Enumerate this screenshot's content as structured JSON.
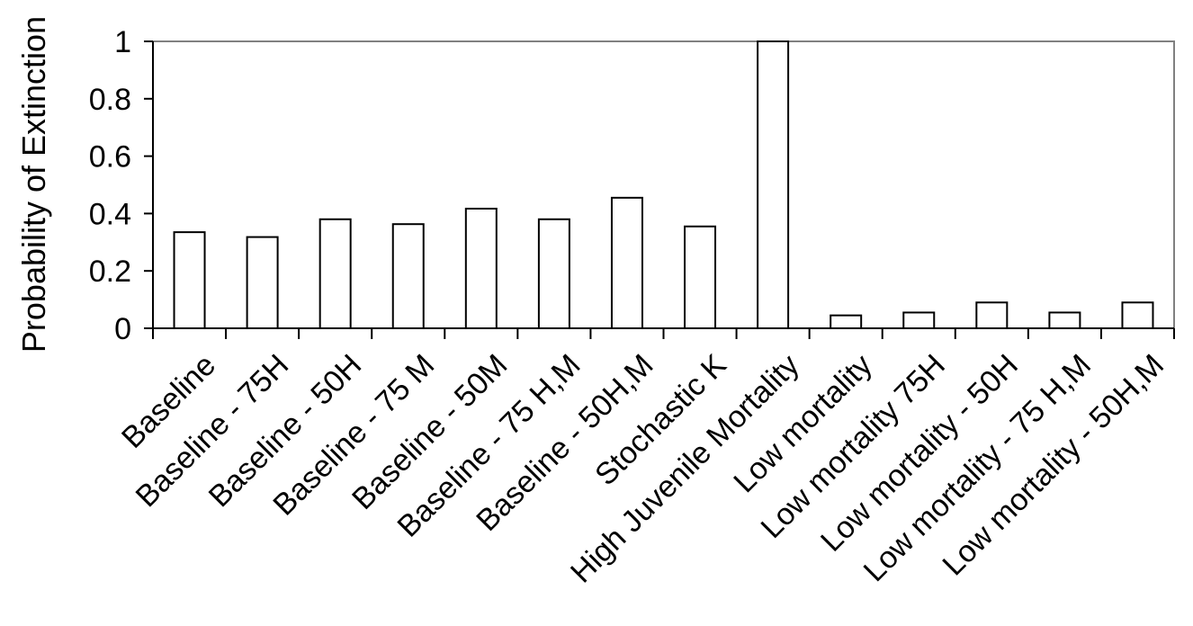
{
  "chart_data": {
    "type": "bar",
    "title": "",
    "xlabel": "",
    "ylabel": "Probability of Extinction",
    "ylim": [
      0,
      1
    ],
    "yticks": [
      0,
      0.2,
      0.4,
      0.6,
      0.8,
      1
    ],
    "ytick_labels": [
      "0",
      "0.2",
      "0.4",
      "0.6",
      "0.8",
      "1"
    ],
    "grid": false,
    "legend": "none",
    "categories": [
      "Baseline",
      "Baseline - 75H",
      "Baseline - 50H",
      "Baseline - 75 M",
      "Baseline - 50M",
      "Baseline - 75 H,M",
      "Baseline - 50H,M",
      "Stochastic K",
      "High Juvenile Mortality",
      "Low mortality",
      "Low mortality 75H",
      "Low mortality - 50H",
      "Low mortality - 75 H,M",
      "Low mortality - 50H,M"
    ],
    "values": [
      0.335,
      0.318,
      0.38,
      0.363,
      0.417,
      0.38,
      0.455,
      0.355,
      1.0,
      0.045,
      0.055,
      0.09,
      0.055,
      0.09
    ],
    "colors": {
      "bar_fill": "#ffffff",
      "bar_stroke": "#000000",
      "plot_border": "#808080",
      "axis": "#000000"
    }
  }
}
